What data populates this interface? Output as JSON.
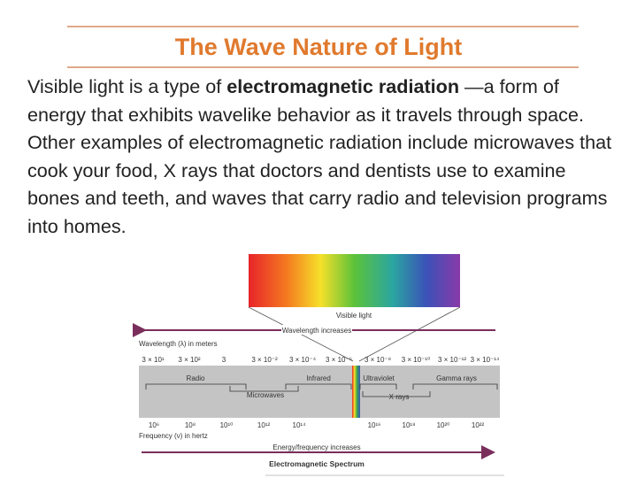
{
  "slide": {
    "title": "The Wave Nature of Light",
    "paragraph": {
      "before": "Visible light is a type of ",
      "bold": "electromagnetic radiation",
      "after": " —a form of energy that exhibits wavelike behavior as it travels through space. Other examples of electromagnetic radiation include microwaves that cook your food, X rays that doctors and dentists use to examine bones and teeth, and waves that carry radio and television programs into homes."
    }
  },
  "diagram": {
    "visible_light_label": "Visible light",
    "wavelength_increases": "Wavelength increases",
    "wavelength_axis_label": "Wavelength (λ) in meters",
    "wavelength_ticks": [
      "3 × 10¹",
      "3 × 10²",
      "3",
      "3 × 10⁻²",
      "3 × 10⁻⁴",
      "3 × 10⁻⁶",
      "3 × 10⁻⁸",
      "3 × 10⁻¹⁰",
      "3 × 10⁻¹²",
      "3 × 10⁻¹⁴"
    ],
    "regions": {
      "radio": "Radio",
      "microwaves": "Microwaves",
      "infrared": "Infrared",
      "ultraviolet": "Ultraviolet",
      "xrays": "X rays",
      "gamma": "Gamma rays"
    },
    "frequency_ticks": [
      "10⁶",
      "10⁸",
      "10¹⁰",
      "10¹²",
      "10¹⁴",
      "10¹⁶",
      "10¹⁸",
      "10²⁰",
      "10²²"
    ],
    "frequency_axis_label": "Frequency (ν) in hertz",
    "energy_increases": "Energy/frequency increases",
    "caption": "Electromagnetic Spectrum",
    "colors": {
      "title": "#e07a2e",
      "arrow": "#7a2e5c",
      "band": "#c4c4c4"
    }
  }
}
